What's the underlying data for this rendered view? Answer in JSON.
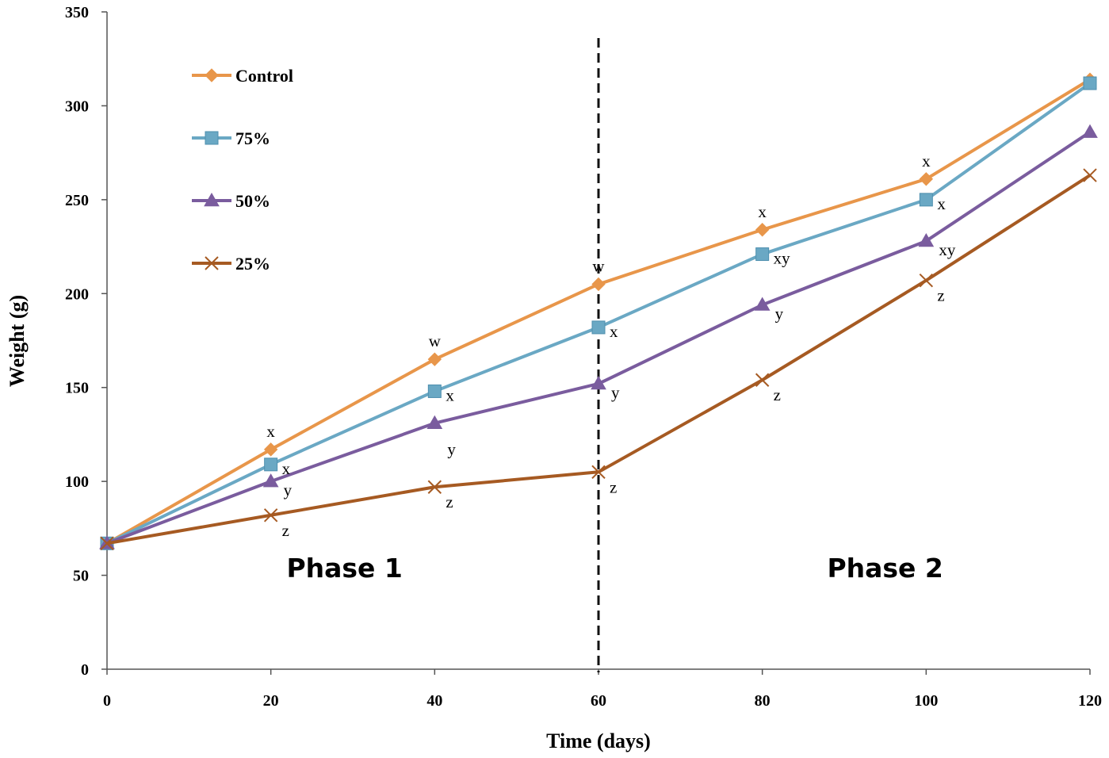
{
  "chart_data": {
    "type": "line",
    "xlabel": "Time (days)",
    "ylabel": "Weight (g)",
    "xlim": [
      0,
      120
    ],
    "ylim": [
      0,
      350
    ],
    "x_ticks": [
      0,
      20,
      40,
      60,
      80,
      100,
      120
    ],
    "y_ticks": [
      0,
      50,
      100,
      150,
      200,
      250,
      300,
      350
    ],
    "grid": false,
    "legend_position": "top-left",
    "x": [
      0,
      20,
      40,
      60,
      80,
      100,
      120
    ],
    "series": [
      {
        "name": "Control",
        "color": "#e8964a",
        "marker": "diamond",
        "values": [
          67,
          117,
          165,
          205,
          234,
          261,
          314
        ],
        "labels": [
          "",
          "x",
          "w",
          "w",
          "x",
          "x",
          ""
        ]
      },
      {
        "name": "75%",
        "color": "#6aa8c4",
        "marker": "square",
        "values": [
          67,
          109,
          148,
          182,
          221,
          250,
          312
        ],
        "labels": [
          "",
          "x",
          "x",
          "x",
          "xy",
          "x",
          ""
        ]
      },
      {
        "name": "50%",
        "color": "#7a5c9e",
        "marker": "triangle",
        "values": [
          67,
          100,
          131,
          152,
          194,
          228,
          286
        ],
        "labels": [
          "",
          "y",
          "y",
          "y",
          "y",
          "xy",
          ""
        ]
      },
      {
        "name": "25%",
        "color": "#a65a22",
        "marker": "x",
        "values": [
          67,
          82,
          97,
          105,
          154,
          207,
          263
        ],
        "labels": [
          "",
          "z",
          "z",
          "z",
          "z",
          "z",
          ""
        ]
      }
    ],
    "annotations": {
      "divider_x": 60,
      "phase_labels": [
        {
          "text": "Phase 1",
          "x": 29,
          "y": 54
        },
        {
          "text": "Phase 2",
          "x": 95,
          "y": 54
        }
      ]
    }
  }
}
